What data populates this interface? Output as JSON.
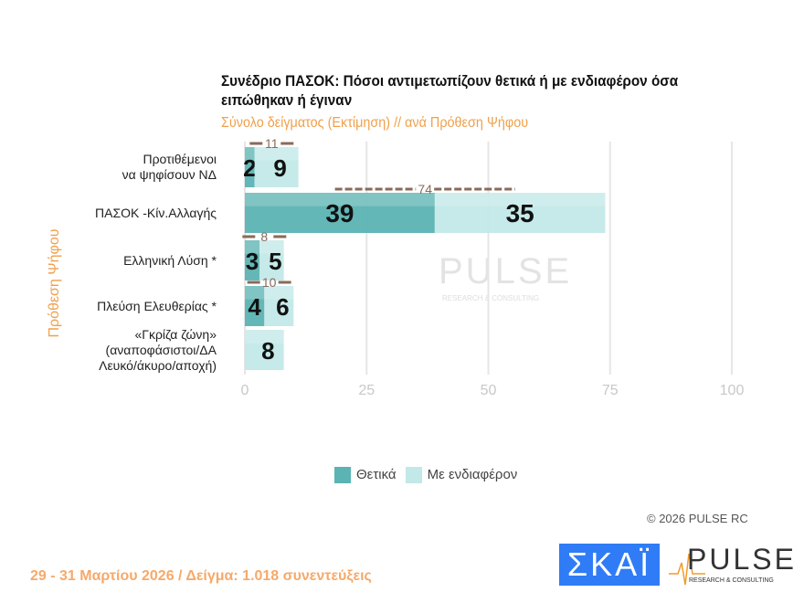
{
  "chart_data": {
    "type": "bar",
    "orientation": "horizontal",
    "stacked": true,
    "title": "Συνέδριο ΠΑΣΟΚ: Πόσοι αντιμετωπίζουν θετικά ή με ενδιαφέρον όσα ειπώθηκαν ή έγιναν",
    "subtitle": "Σύνολο δείγματος  (Εκτίμηση) // ανά Πρόθεση  Ψήφου",
    "ylabel": "Πρόθεση  Ψήφου",
    "categories": [
      "Προτιθέμενοι\nνα ψηφίσουν ΝΔ",
      "ΠΑΣΟΚ -Κίν.Αλλαγής",
      "Ελληνική Λύση *",
      "Πλεύση Ελευθερίας *",
      "«Γκρίζα ζώνη»\n(αναποφάσιστοι/ΔΑ\nΛευκό/άκυρο/αποχή)"
    ],
    "series": [
      {
        "name": "Θετικά",
        "color": "#5cb3b3",
        "values": [
          2,
          39,
          3,
          4,
          null
        ]
      },
      {
        "name": "Με ενδιαφέρον",
        "color": "#c3e8e8",
        "values": [
          9,
          35,
          5,
          6,
          8
        ]
      }
    ],
    "totals": [
      11,
      74,
      8,
      10,
      null
    ],
    "xlim": [
      0,
      100
    ],
    "xticks": [
      "0",
      "25",
      "50",
      "75",
      "100"
    ],
    "grid": true,
    "legend": "bottom"
  },
  "watermark": "PULSE",
  "copyright": "©  2026  PULSE RC",
  "footer": "29 - 31  Μαρτίου 2026  /  Δείγμα:  1.018 συνεντεύξεις",
  "logos": {
    "skai": "ΣΚΑΪ",
    "pulse": "PULSE",
    "pulse_sub": "RESEARCH & CONSULTING"
  }
}
